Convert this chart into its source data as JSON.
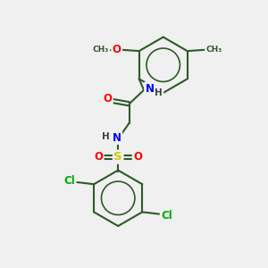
{
  "background_color": "#f0f0f0",
  "bond_color": "#2d5a27",
  "atom_colors": {
    "O": "#ff0000",
    "N": "#0000ff",
    "S": "#cccc00",
    "Cl": "#00aa00",
    "C": "#2d5a27",
    "H": "#404040"
  },
  "figsize": [
    3.0,
    3.0
  ],
  "dpi": 100
}
